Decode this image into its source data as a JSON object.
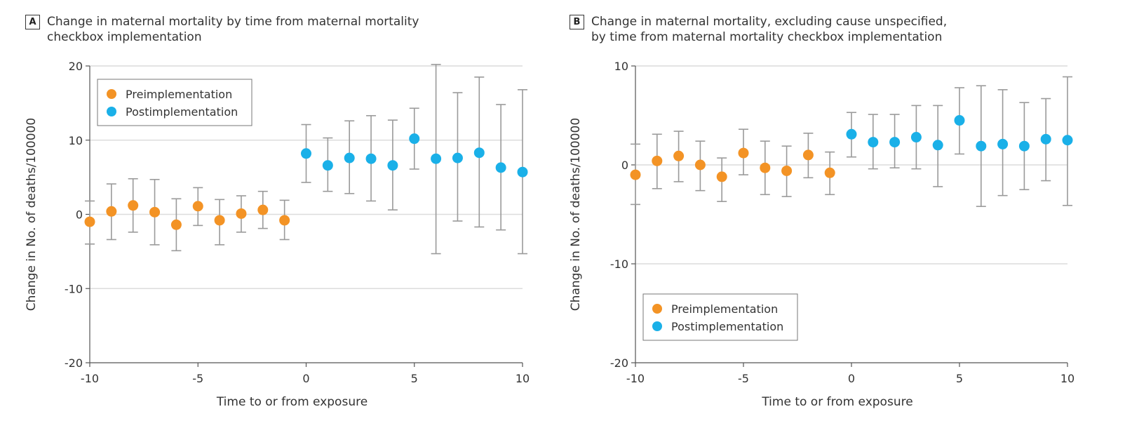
{
  "colors": {
    "pre": "#f39325",
    "post": "#1ab0e8",
    "errorbar": "#9a9a9a",
    "grid": "#dcdcdc",
    "axis": "#555555"
  },
  "panels": [
    {
      "letter": "A",
      "title_lines": [
        "Change in maternal mortality by time from maternal mortality",
        "checkbox implementation"
      ]
    },
    {
      "letter": "B",
      "title_lines": [
        "Change in maternal mortality, excluding cause unspecified,",
        "by time from maternal mortality checkbox implementation"
      ]
    }
  ],
  "chart_data": [
    {
      "type": "scatter",
      "panel": "A",
      "title": "Change in maternal mortality by time from maternal mortality checkbox implementation",
      "xlabel": "Time to or from exposure",
      "ylabel": "Change in No. of deaths/100000",
      "xlim": [
        -10,
        10
      ],
      "ylim": [
        -20,
        20
      ],
      "xticks": [
        -10,
        -5,
        0,
        5,
        10
      ],
      "yticks": [
        20,
        10,
        0,
        -10,
        -20
      ],
      "legend_position": "top-left",
      "series": [
        {
          "name": "Preimplementation",
          "color_key": "pre",
          "points": [
            {
              "x": -10,
              "y": -1.0,
              "lo": -4.0,
              "hi": 1.8
            },
            {
              "x": -9,
              "y": 0.4,
              "lo": -3.4,
              "hi": 4.1
            },
            {
              "x": -8,
              "y": 1.2,
              "lo": -2.4,
              "hi": 4.8
            },
            {
              "x": -7,
              "y": 0.3,
              "lo": -4.1,
              "hi": 4.7
            },
            {
              "x": -6,
              "y": -1.4,
              "lo": -4.9,
              "hi": 2.1
            },
            {
              "x": -5,
              "y": 1.1,
              "lo": -1.5,
              "hi": 3.6
            },
            {
              "x": -4,
              "y": -0.8,
              "lo": -4.1,
              "hi": 2.0
            },
            {
              "x": -3,
              "y": 0.1,
              "lo": -2.4,
              "hi": 2.5
            },
            {
              "x": -2,
              "y": 0.6,
              "lo": -1.9,
              "hi": 3.1
            },
            {
              "x": -1,
              "y": -0.8,
              "lo": -3.4,
              "hi": 1.9
            }
          ]
        },
        {
          "name": "Postimplementation",
          "color_key": "post",
          "points": [
            {
              "x": 0,
              "y": 8.2,
              "lo": 4.3,
              "hi": 12.1
            },
            {
              "x": 1,
              "y": 6.6,
              "lo": 3.1,
              "hi": 10.3
            },
            {
              "x": 2,
              "y": 7.6,
              "lo": 2.8,
              "hi": 12.6
            },
            {
              "x": 3,
              "y": 7.5,
              "lo": 1.8,
              "hi": 13.3
            },
            {
              "x": 4,
              "y": 6.6,
              "lo": 0.6,
              "hi": 12.7
            },
            {
              "x": 5,
              "y": 10.2,
              "lo": 6.1,
              "hi": 14.3
            },
            {
              "x": 6,
              "y": 7.5,
              "lo": -5.3,
              "hi": 20.2
            },
            {
              "x": 7,
              "y": 7.6,
              "lo": -0.9,
              "hi": 16.4
            },
            {
              "x": 8,
              "y": 8.3,
              "lo": -1.7,
              "hi": 18.5
            },
            {
              "x": 9,
              "y": 6.3,
              "lo": -2.1,
              "hi": 14.8
            },
            {
              "x": 10,
              "y": 5.7,
              "lo": -5.3,
              "hi": 16.8
            }
          ]
        }
      ]
    },
    {
      "type": "scatter",
      "panel": "B",
      "title": "Change in maternal mortality, excluding cause unspecified, by time from maternal mortality checkbox implementation",
      "xlabel": "Time to or from exposure",
      "ylabel": "Change in No. of deaths/100000",
      "xlim": [
        -10,
        10
      ],
      "ylim": [
        -20,
        10
      ],
      "xticks": [
        -10,
        -5,
        0,
        5,
        10
      ],
      "yticks": [
        10,
        0,
        -10,
        -20
      ],
      "legend_position": "bottom-left",
      "series": [
        {
          "name": "Preimplementation",
          "color_key": "pre",
          "points": [
            {
              "x": -10,
              "y": -1.0,
              "lo": -4.0,
              "hi": 2.1
            },
            {
              "x": -9,
              "y": 0.4,
              "lo": -2.4,
              "hi": 3.1
            },
            {
              "x": -8,
              "y": 0.9,
              "lo": -1.7,
              "hi": 3.4
            },
            {
              "x": -7,
              "y": 0.0,
              "lo": -2.6,
              "hi": 2.4
            },
            {
              "x": -6,
              "y": -1.2,
              "lo": -3.7,
              "hi": 0.7
            },
            {
              "x": -5,
              "y": 1.2,
              "lo": -1.0,
              "hi": 3.6
            },
            {
              "x": -4,
              "y": -0.3,
              "lo": -3.0,
              "hi": 2.4
            },
            {
              "x": -3,
              "y": -0.6,
              "lo": -3.2,
              "hi": 1.9
            },
            {
              "x": -2,
              "y": 1.0,
              "lo": -1.3,
              "hi": 3.2
            },
            {
              "x": -1,
              "y": -0.8,
              "lo": -3.0,
              "hi": 1.3
            }
          ]
        },
        {
          "name": "Postimplementation",
          "color_key": "post",
          "points": [
            {
              "x": 0,
              "y": 3.1,
              "lo": 0.8,
              "hi": 5.3
            },
            {
              "x": 1,
              "y": 2.3,
              "lo": -0.4,
              "hi": 5.1
            },
            {
              "x": 2,
              "y": 2.3,
              "lo": -0.3,
              "hi": 5.1
            },
            {
              "x": 3,
              "y": 2.8,
              "lo": -0.4,
              "hi": 6.0
            },
            {
              "x": 4,
              "y": 2.0,
              "lo": -2.2,
              "hi": 6.0
            },
            {
              "x": 5,
              "y": 4.5,
              "lo": 1.1,
              "hi": 7.8
            },
            {
              "x": 6,
              "y": 1.9,
              "lo": -4.2,
              "hi": 8.0
            },
            {
              "x": 7,
              "y": 2.1,
              "lo": -3.1,
              "hi": 7.6
            },
            {
              "x": 8,
              "y": 1.9,
              "lo": -2.5,
              "hi": 6.3
            },
            {
              "x": 9,
              "y": 2.6,
              "lo": -1.6,
              "hi": 6.7
            },
            {
              "x": 10,
              "y": 2.5,
              "lo": -4.1,
              "hi": 8.9
            }
          ]
        }
      ]
    }
  ]
}
